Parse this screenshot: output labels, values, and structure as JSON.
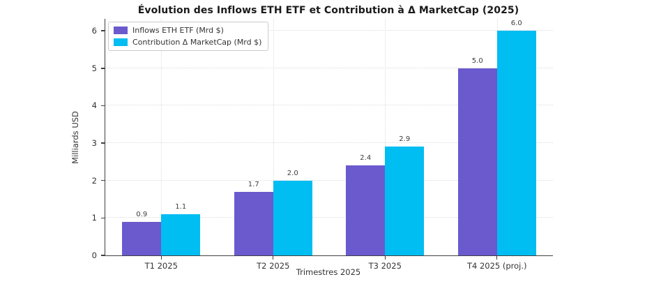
{
  "chart_data": {
    "type": "bar",
    "title": "Évolution des Inflows ETH ETF et Contribution à Δ MarketCap (2025)",
    "xlabel": "Trimestres 2025",
    "ylabel": "Milliards USD",
    "categories": [
      "T1 2025",
      "T2 2025",
      "T3 2025",
      "T4 2025 (proj.)"
    ],
    "series": [
      {
        "name": "Inflows ETH ETF (Mrd $)",
        "color": "#6A5ACD",
        "values": [
          0.9,
          1.7,
          2.4,
          5.0
        ],
        "labels": [
          "0.9",
          "1.7",
          "2.4",
          "5.0"
        ]
      },
      {
        "name": "Contribution Δ MarketCap (Mrd $)",
        "color": "#00BDF2",
        "values": [
          1.1,
          2.0,
          2.9,
          6.0
        ],
        "labels": [
          "1.1",
          "2.0",
          "2.9",
          "6.0"
        ]
      }
    ],
    "yticks": [
      "0",
      "1",
      "2",
      "3",
      "4",
      "5",
      "6"
    ],
    "ylim": [
      0,
      6.32
    ],
    "grid": "both",
    "legend_position": "upper-left",
    "spine_color": "#404040",
    "grid_color": "#dcdcdc",
    "text_color": "#333333"
  }
}
